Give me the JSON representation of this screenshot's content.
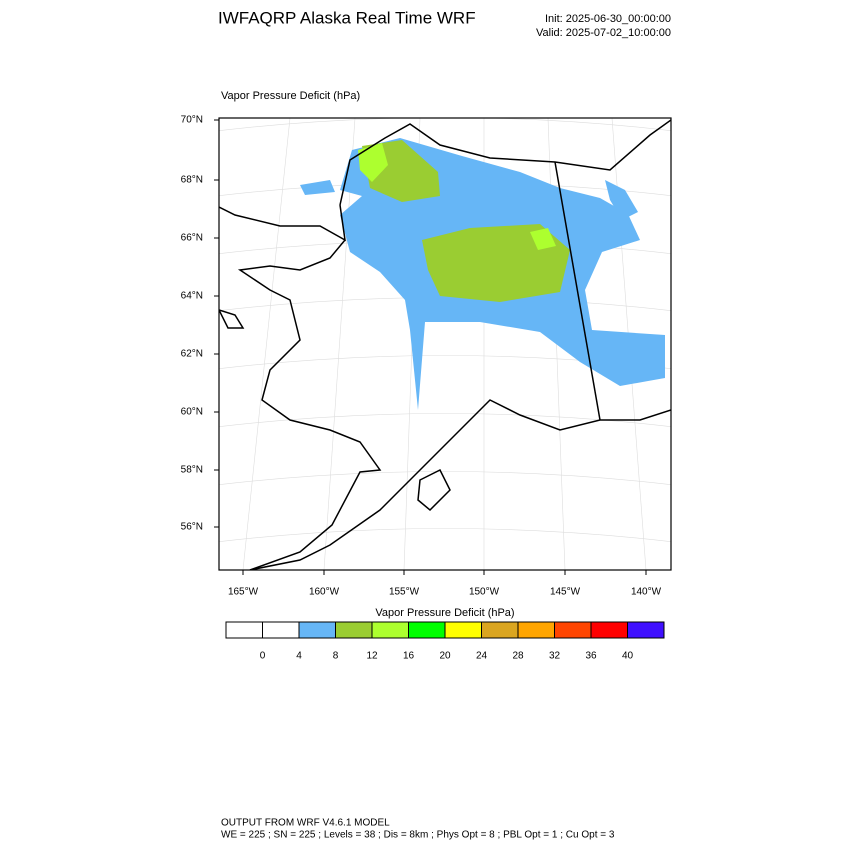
{
  "header": {
    "title": "IWFAQRP Alaska Real Time WRF",
    "init": "Init: 2025-06-30_00:00:00",
    "valid": "Valid: 2025-07-02_10:00:00"
  },
  "map": {
    "title": "Vapor Pressure Deficit   (hPa)",
    "lat_labels": [
      "70°N",
      "68°N",
      "66°N",
      "64°N",
      "62°N",
      "60°N",
      "58°N",
      "56°N"
    ],
    "lon_labels": [
      "165°W",
      "160°W",
      "155°W",
      "150°W",
      "145°W",
      "140°W"
    ]
  },
  "colorbar": {
    "title": "Vapor Pressure Deficit  (hPa)",
    "colors": [
      "#ffffff",
      "#ffffff",
      "#66b6f6",
      "#9acd32",
      "#adff2f",
      "#00ff00",
      "#ffff00",
      "#daa520",
      "#ffa500",
      "#ff4500",
      "#ff0000",
      "#4010ff"
    ],
    "ticks": [
      0,
      4,
      8,
      12,
      16,
      20,
      24,
      28,
      32,
      36,
      40
    ]
  },
  "footer": {
    "line1": "OUTPUT FROM WRF V4.6.1 MODEL",
    "line2": "WE = 225 ; SN = 225 ; Levels = 38 ; Dis = 8km ; Phys Opt = 8 ; PBL Opt = 1 ; Cu Opt = 3"
  }
}
